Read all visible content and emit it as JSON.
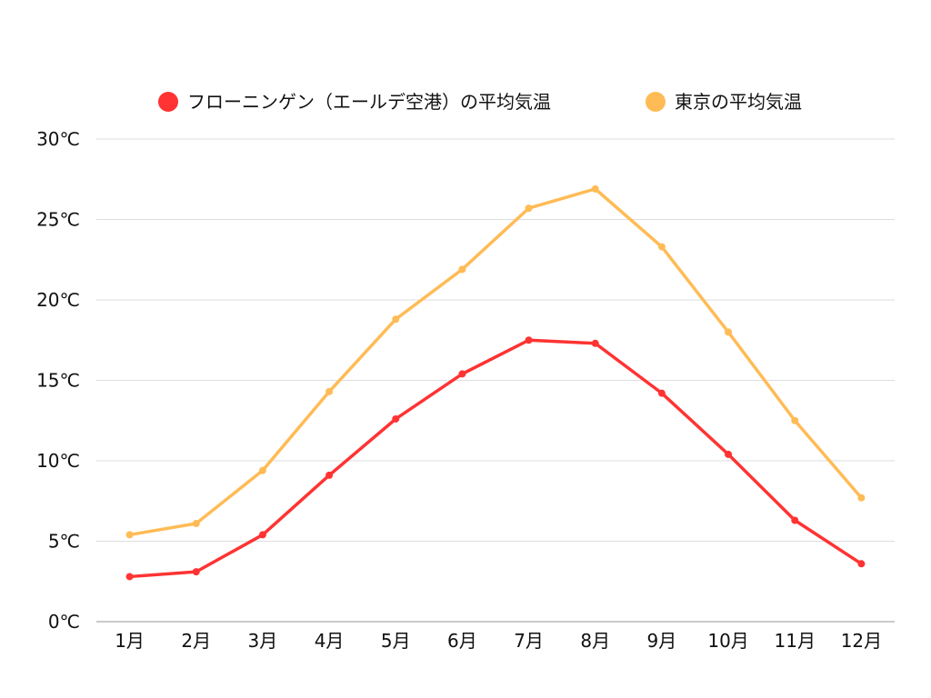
{
  "chart_data": {
    "type": "line",
    "title": "",
    "xlabel": "",
    "ylabel": "",
    "categories": [
      "1月",
      "2月",
      "3月",
      "4月",
      "5月",
      "6月",
      "7月",
      "8月",
      "9月",
      "10月",
      "11月",
      "12月"
    ],
    "ylim": [
      0,
      30
    ],
    "yticks": [
      0,
      5,
      10,
      15,
      20,
      25,
      30
    ],
    "ytick_labels": [
      "0℃",
      "5℃",
      "10℃",
      "15℃",
      "20℃",
      "25℃",
      "30℃"
    ],
    "grid": true,
    "legend_position": "top-center",
    "series": [
      {
        "name": "フローニンゲン（エールデ空港）の平均気温",
        "color": "#ff3333",
        "values": [
          2.8,
          3.1,
          5.4,
          9.1,
          12.6,
          15.4,
          17.5,
          17.3,
          14.2,
          10.4,
          6.3,
          3.6
        ]
      },
      {
        "name": "東京の平均気温",
        "color": "#ffbb55",
        "values": [
          5.4,
          6.1,
          9.4,
          14.3,
          18.8,
          21.9,
          25.7,
          26.9,
          23.3,
          18.0,
          12.5,
          7.7
        ]
      }
    ]
  }
}
